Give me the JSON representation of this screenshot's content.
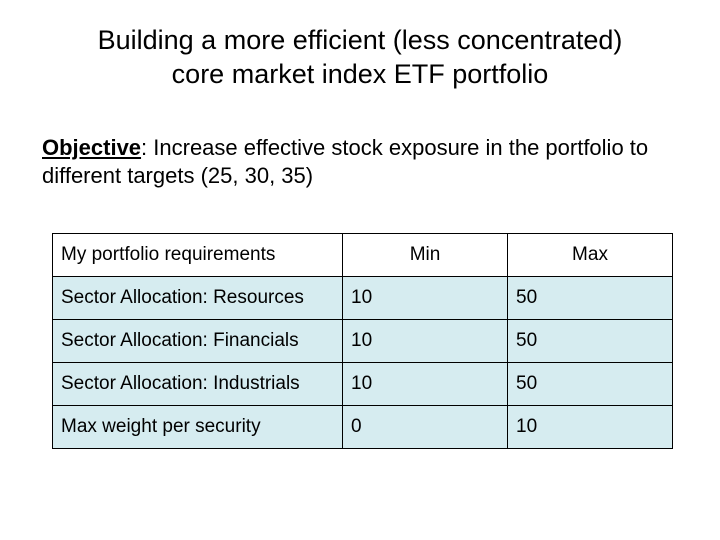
{
  "title_line1": "Building a more efficient (less concentrated)",
  "title_line2": "core market index ETF portfolio",
  "objective_label": "Objective",
  "objective_text": ": Increase effective stock exposure in the portfolio to different targets (25, 30, 35)",
  "table": {
    "header_requirements": "My portfolio requirements",
    "header_min": "Min",
    "header_max": "Max",
    "rows": [
      {
        "label": "Sector Allocation: Resources",
        "min": "10",
        "max": "50"
      },
      {
        "label": "Sector Allocation: Financials",
        "min": "10",
        "max": "50"
      },
      {
        "label": "Sector Allocation: Industrials",
        "min": "10",
        "max": "50"
      },
      {
        "label": "Max weight per security",
        "min": "0",
        "max": "10"
      }
    ],
    "shaded_row_bg": "#d6ecf0",
    "border_color": "#000000",
    "font_size": 19
  },
  "colors": {
    "background": "#ffffff",
    "text": "#000000"
  }
}
